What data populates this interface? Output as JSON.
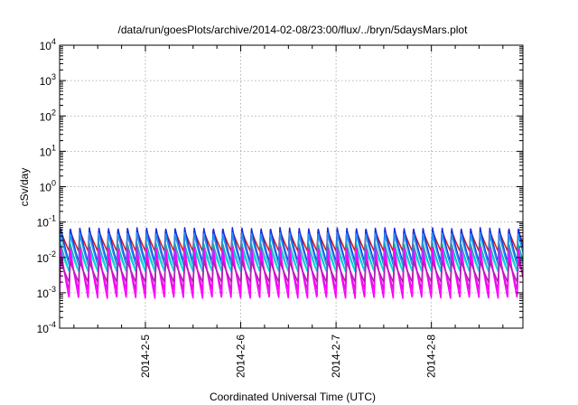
{
  "chart_data": {
    "type": "line",
    "title": "/data/run/goesPlots/archive/2014-02-08/23:00/flux/../bryn/5daysMars.plot",
    "xlabel": "Coordinated Universal Time (UTC)",
    "ylabel": "cSv/day",
    "yscale": "log",
    "ylim": [
      0.0001,
      10000
    ],
    "y_ticks": [
      {
        "base": "10",
        "exp": "4"
      },
      {
        "base": "10",
        "exp": "3"
      },
      {
        "base": "10",
        "exp": "2"
      },
      {
        "base": "10",
        "exp": "1"
      },
      {
        "base": "10",
        "exp": "0"
      },
      {
        "base": "10",
        "exp": "-1"
      },
      {
        "base": "10",
        "exp": "-2"
      },
      {
        "base": "10",
        "exp": "-3"
      },
      {
        "base": "10",
        "exp": "-4"
      }
    ],
    "x_range_days": [
      4.1,
      8.96
    ],
    "x_ticks": [
      {
        "label": "2014-2-5",
        "day": 5
      },
      {
        "label": "2014-2-6",
        "day": 6
      },
      {
        "label": "2014-2-7",
        "day": 7
      },
      {
        "label": "2014-2-8",
        "day": 8
      }
    ],
    "grid": true,
    "oscillation_period_days": 0.1,
    "series": [
      {
        "color": "#d01f1f",
        "peak": 0.06,
        "trough": 0.015
      },
      {
        "color": "#1a2be0",
        "peak": 0.07,
        "trough": 0.007
      },
      {
        "color": "#2196f3",
        "peak": 0.05,
        "trough": 0.006
      },
      {
        "color": "#19a6a6",
        "peak": 0.025,
        "trough": 0.004
      },
      {
        "color": "#00e0e0",
        "peak": 0.018,
        "trough": 0.004
      },
      {
        "color": "#d021d0",
        "peak": 0.012,
        "trough": 0.0012
      },
      {
        "color": "#ff00ff",
        "peak": 0.02,
        "trough": 0.0007
      },
      {
        "color": "#b21fb2",
        "peak": 0.008,
        "trough": 0.002
      }
    ]
  }
}
